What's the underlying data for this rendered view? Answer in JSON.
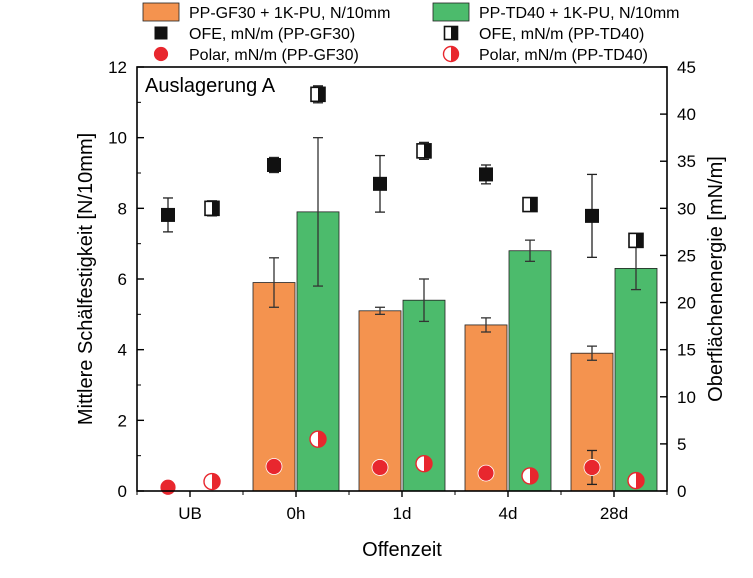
{
  "chart_data": {
    "type": "bar",
    "annotation": "Auslagerung A",
    "xlabel": "Offenzeit",
    "ylabel_left": "Mittlere Schälfestigkeit [N/10mm]",
    "ylabel_right": "Oberflächenenergie [mN/m]",
    "categories": [
      "UB",
      "0h",
      "1d",
      "4d",
      "28d"
    ],
    "ylim_left": [
      0,
      12
    ],
    "yticks_left": [
      "0",
      "2",
      "4",
      "6",
      "8",
      "10",
      "12"
    ],
    "ylim_right": [
      0,
      45
    ],
    "yticks_right": [
      "0",
      "5",
      "10",
      "15",
      "20",
      "25",
      "30",
      "35",
      "40",
      "45"
    ],
    "grid": false,
    "legend_position": "top",
    "series": [
      {
        "name": "PP-GF30 + 1K-PU, N/10mm",
        "kind": "bar",
        "axis": "left",
        "color": "#f4934f",
        "values": [
          null,
          5.9,
          5.1,
          4.7,
          3.9
        ],
        "errors": [
          null,
          0.7,
          0.1,
          0.2,
          0.2
        ]
      },
      {
        "name": "PP-TD40 + 1K-PU, N/10mm",
        "kind": "bar",
        "axis": "left",
        "color": "#4cbb6c",
        "values": [
          null,
          7.9,
          5.4,
          6.8,
          6.3
        ],
        "errors": [
          null,
          2.1,
          0.6,
          0.3,
          0.6
        ]
      },
      {
        "name": "OFE, mN/m (PP-GF30)",
        "kind": "marker",
        "marker": "square-filled",
        "axis": "right",
        "color": "#111111",
        "values": [
          29.3,
          34.6,
          32.6,
          33.6,
          29.2
        ],
        "errors": [
          1.8,
          0.8,
          3.0,
          1.0,
          4.4
        ]
      },
      {
        "name": "OFE, mN/m (PP-TD40)",
        "kind": "marker",
        "marker": "square-half",
        "axis": "right",
        "color": "#111111",
        "values": [
          30.0,
          42.1,
          36.1,
          30.4,
          26.6
        ],
        "errors": [
          0.8,
          0.9,
          0.9,
          0.3,
          0.5
        ]
      },
      {
        "name": "Polar, mN/m (PP-GF30)",
        "kind": "marker",
        "marker": "circle-filled",
        "axis": "right",
        "color": "#e8272e",
        "values": [
          0.4,
          2.6,
          2.5,
          1.9,
          2.5
        ],
        "errors": [
          null,
          null,
          null,
          null,
          1.8
        ]
      },
      {
        "name": "Polar, mN/m (PP-TD40)",
        "kind": "marker",
        "marker": "circle-half",
        "axis": "right",
        "color": "#e8272e",
        "values": [
          1.0,
          5.5,
          2.9,
          1.6,
          1.1
        ],
        "errors": [
          null,
          null,
          null,
          null,
          null
        ]
      }
    ]
  }
}
